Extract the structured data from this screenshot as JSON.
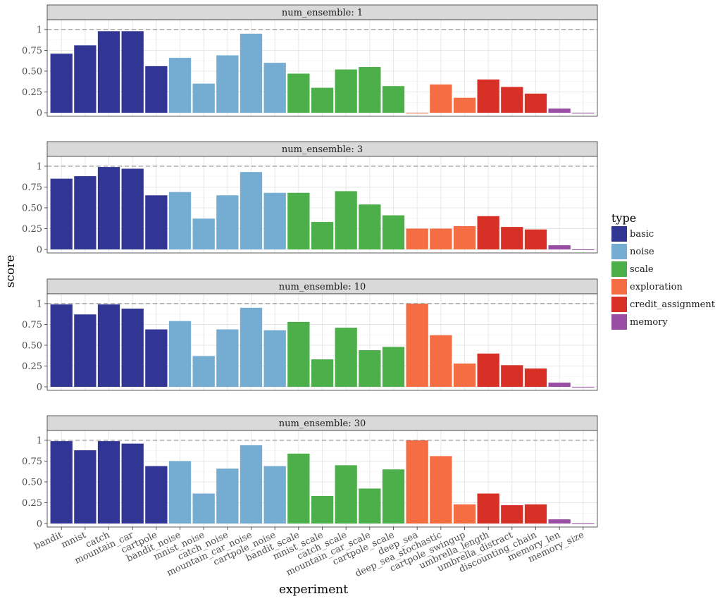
{
  "chart_data": {
    "type": "bar",
    "xlabel": "experiment",
    "ylabel": "score",
    "ylim": [
      0,
      1.05
    ],
    "yticks": [
      0,
      0.25,
      0.5,
      0.75,
      1
    ],
    "ytick_labels": [
      "0",
      "0.25",
      "0.50",
      "0.75",
      "1"
    ],
    "reference_line": 1,
    "grid": true,
    "legend_placement": "right",
    "categories": [
      "bandit",
      "mnist",
      "catch",
      "mountain_car",
      "cartpole",
      "bandit_noise",
      "mnist_noise",
      "catch_noise",
      "mountain_car_noise",
      "cartpole_noise",
      "bandit_scale",
      "mnist_scale",
      "catch_scale",
      "mountain_car_scale",
      "cartpole_scale",
      "deep_sea",
      "deep_sea_stochastic",
      "cartpole_swingup",
      "umbrella_length",
      "umbrella_distract",
      "discounting_chain",
      "memory_len",
      "memory_size"
    ],
    "category_types": [
      "basic",
      "basic",
      "basic",
      "basic",
      "basic",
      "noise",
      "noise",
      "noise",
      "noise",
      "noise",
      "scale",
      "scale",
      "scale",
      "scale",
      "scale",
      "exploration",
      "exploration",
      "exploration",
      "credit_assignment",
      "credit_assignment",
      "credit_assignment",
      "memory",
      "memory"
    ],
    "legend": {
      "title": "type",
      "items": [
        {
          "label": "basic",
          "color": "#313695"
        },
        {
          "label": "noise",
          "color": "#74add1"
        },
        {
          "label": "scale",
          "color": "#4daf4a"
        },
        {
          "label": "exploration",
          "color": "#f46d43"
        },
        {
          "label": "credit_assignment",
          "color": "#d73027"
        },
        {
          "label": "memory",
          "color": "#984ea3"
        }
      ]
    },
    "panels": [
      {
        "label": "num_ensemble: 1",
        "values": [
          0.71,
          0.81,
          0.98,
          0.98,
          0.56,
          0.66,
          0.35,
          0.69,
          0.95,
          0.6,
          0.47,
          0.3,
          0.52,
          0.55,
          0.32,
          0.0,
          0.34,
          0.18,
          0.4,
          0.31,
          0.23,
          0.05,
          0.0
        ]
      },
      {
        "label": "num_ensemble: 3",
        "values": [
          0.85,
          0.88,
          0.99,
          0.97,
          0.65,
          0.69,
          0.37,
          0.65,
          0.93,
          0.68,
          0.68,
          0.33,
          0.7,
          0.54,
          0.41,
          0.25,
          0.25,
          0.28,
          0.4,
          0.27,
          0.24,
          0.05,
          0.0
        ]
      },
      {
        "label": "num_ensemble: 10",
        "values": [
          0.99,
          0.87,
          0.99,
          0.94,
          0.69,
          0.79,
          0.37,
          0.69,
          0.95,
          0.68,
          0.78,
          0.33,
          0.71,
          0.44,
          0.48,
          1.0,
          0.62,
          0.28,
          0.4,
          0.26,
          0.22,
          0.05,
          0.0
        ]
      },
      {
        "label": "num_ensemble: 30",
        "values": [
          0.99,
          0.88,
          0.99,
          0.96,
          0.69,
          0.75,
          0.36,
          0.66,
          0.94,
          0.69,
          0.84,
          0.33,
          0.7,
          0.42,
          0.65,
          1.0,
          0.81,
          0.23,
          0.36,
          0.22,
          0.23,
          0.05,
          0.0
        ]
      }
    ]
  }
}
